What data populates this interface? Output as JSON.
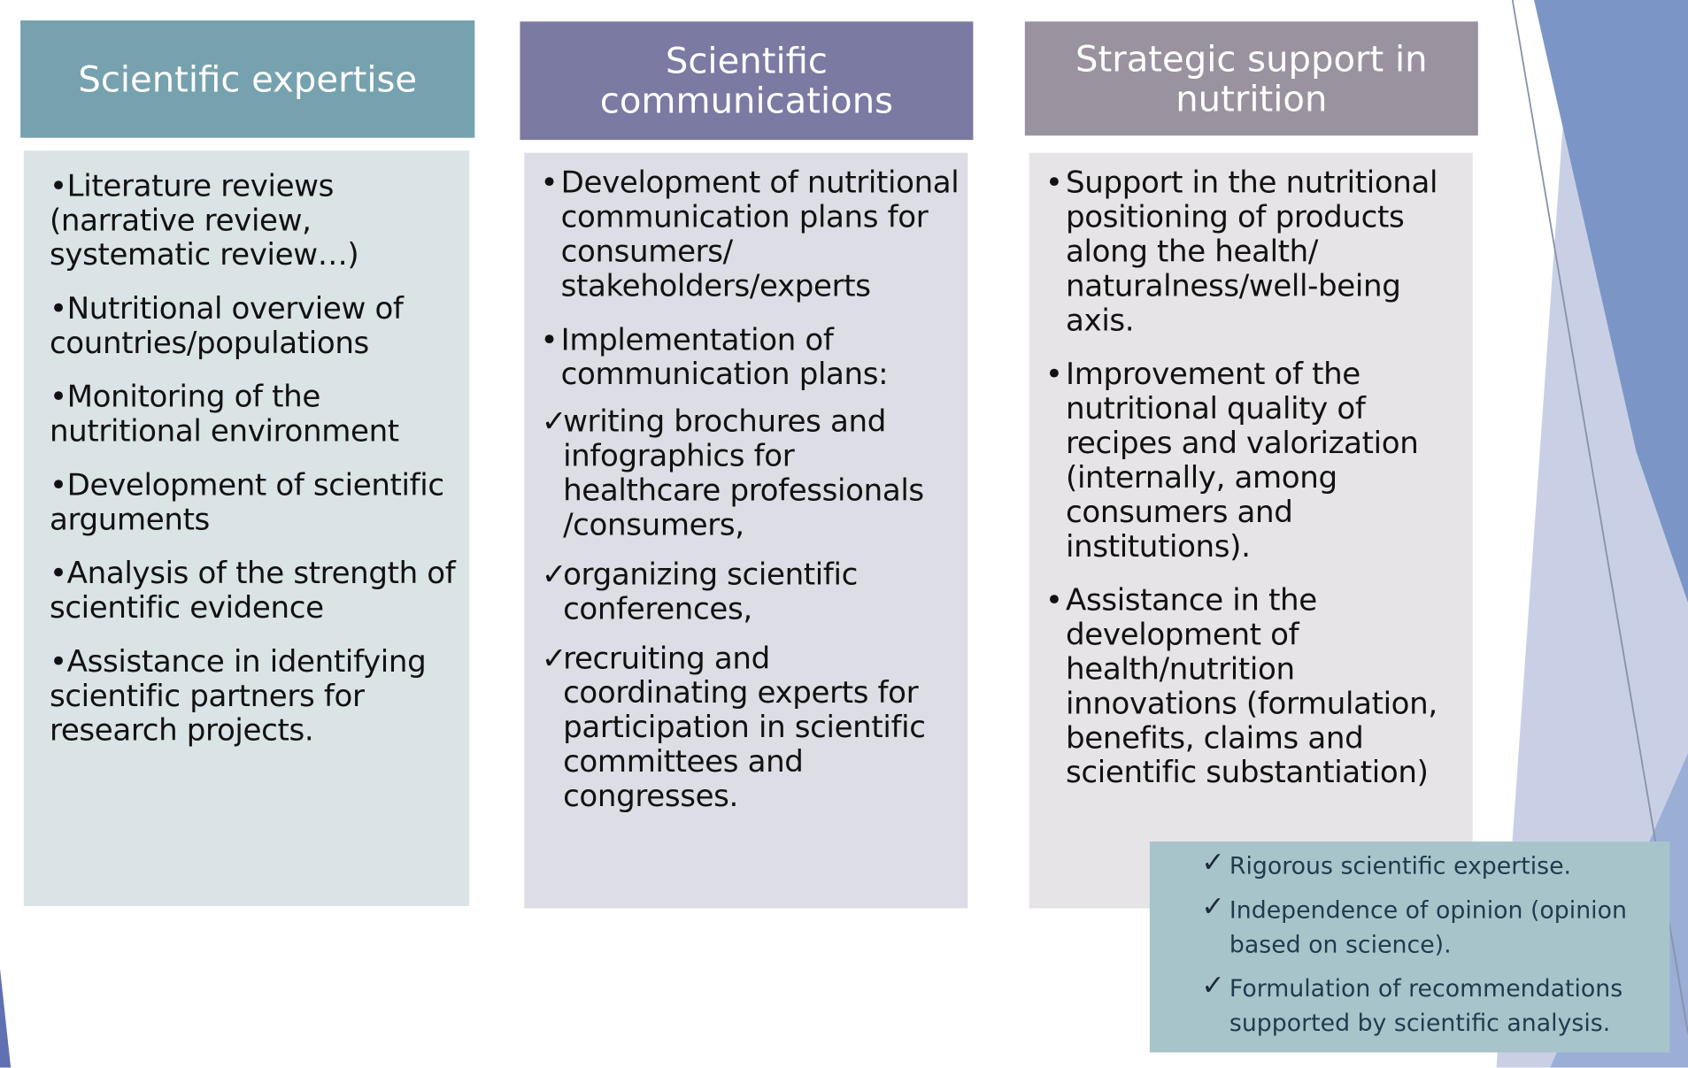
{
  "columns": [
    {
      "header": "Scientific expertise",
      "items": [
        {
          "text": "Literature reviews (narrative review, systematic review…)"
        },
        {
          "text": "Nutritional overview of countries/populations"
        },
        {
          "text": "Monitoring of the nutritional environment"
        },
        {
          "text": "Development of scientific arguments"
        },
        {
          "text": "Analysis of the strength of scientific evidence"
        },
        {
          "text": "Assistance in identifying scientific partners for research projects."
        }
      ]
    },
    {
      "header": "Scientific communications",
      "items": [
        {
          "text": "Development of nutritional communication plans for consumers/ stakeholders/experts"
        },
        {
          "text": "Implementation of communication plans:",
          "subitems": [
            "writing brochures and infographics for healthcare professionals /consumers,",
            "organizing scientific conferences,",
            "recruiting and coordinating experts for participation in scientific committees and congresses."
          ]
        }
      ]
    },
    {
      "header": "Strategic support in nutrition",
      "items": [
        {
          "text": "Support in the nutritional positioning of products along the health/ naturalness/well-being axis."
        },
        {
          "text": "Improvement of the nutritional quality of recipes and valorization (internally, among consumers and institutions)."
        },
        {
          "text": "Assistance in the development of health/nutrition innovations (formulation, benefits, claims and scientific substantiation)"
        }
      ]
    }
  ],
  "key_points": [
    "Rigorous scientific expertise.",
    "Independence of opinion (opinion based on science).",
    "Formulation of recommendations supported by scientific analysis."
  ]
}
